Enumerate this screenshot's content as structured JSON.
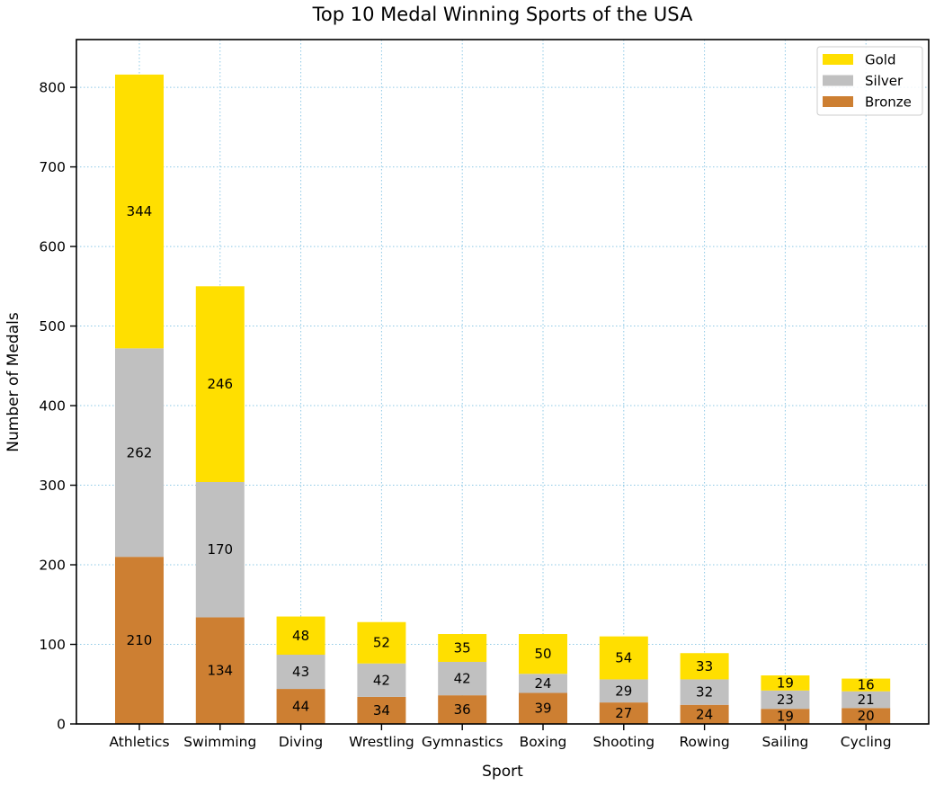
{
  "chart_data": {
    "type": "bar",
    "stacked": true,
    "title": "Top 10 Medal Winning Sports of the USA",
    "xlabel": "Sport",
    "ylabel": "Number of Medals",
    "categories": [
      "Athletics",
      "Swimming",
      "Diving",
      "Wrestling",
      "Gymnastics",
      "Boxing",
      "Shooting",
      "Rowing",
      "Sailing",
      "Cycling"
    ],
    "series": [
      {
        "name": "Bronze",
        "color": "#cd7f32",
        "values": [
          210,
          134,
          44,
          34,
          36,
          39,
          27,
          24,
          19,
          20
        ]
      },
      {
        "name": "Silver",
        "color": "#c0c0c0",
        "values": [
          262,
          170,
          43,
          42,
          42,
          24,
          29,
          32,
          23,
          21
        ]
      },
      {
        "name": "Gold",
        "color": "#ffdf00",
        "values": [
          344,
          246,
          48,
          52,
          35,
          50,
          54,
          33,
          19,
          16
        ]
      }
    ],
    "legend_order": [
      "Gold",
      "Silver",
      "Bronze"
    ],
    "legend_position": "top-right",
    "ylim": [
      0,
      860
    ],
    "yticks": [
      0,
      100,
      200,
      300,
      400,
      500,
      600,
      700,
      800
    ],
    "grid": true,
    "data_labels": true
  }
}
